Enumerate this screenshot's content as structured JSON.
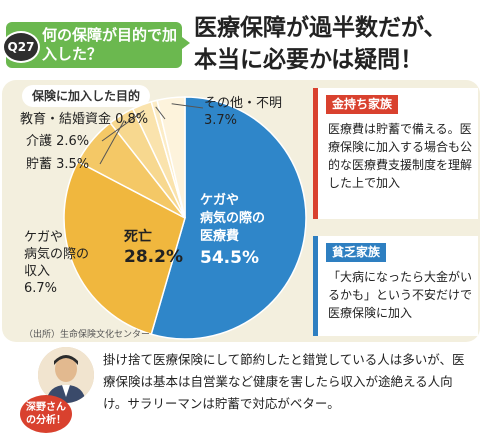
{
  "question": {
    "number": "Q27",
    "text": "何の保障が目的で加入した？"
  },
  "headline": {
    "line1": "医療保障が過半数だが、",
    "line2": "本当に必要かは疑問！"
  },
  "section_label": "保険に加入した目的",
  "source": "（出所）生命保険文化センター",
  "chart_data": {
    "type": "pie",
    "title": "保険に加入した目的",
    "slices": [
      {
        "name": "ケガや病気の際の医療費",
        "value": 54.5,
        "color": "#2f86c9"
      },
      {
        "name": "死亡",
        "value": 28.2,
        "color": "#f0b73e"
      },
      {
        "name": "ケガや病気の際の収入",
        "value": 6.7,
        "color": "#f4c866"
      },
      {
        "name": "貯蓄",
        "value": 3.5,
        "color": "#f7d88f"
      },
      {
        "name": "介護",
        "value": 2.6,
        "color": "#fae3ad"
      },
      {
        "name": "教育・結婚資金",
        "value": 0.8,
        "color": "#fcecc6"
      },
      {
        "name": "その他・不明",
        "value": 3.7,
        "color": "#fdf3dc"
      }
    ],
    "labels": {
      "medical_l1": "ケガや",
      "medical_l2": "病気の際の",
      "medical_l3": "医療費",
      "medical_val": "54.5%",
      "death_name": "死亡",
      "death_val": "28.2%",
      "income_l1": "ケガや",
      "income_l2": "病気の際の",
      "income_l3": "収入",
      "income_val": "6.7%",
      "savings": "貯蓄 3.5%",
      "care": "介護 2.6%",
      "education": "教育・結婚資金 0.8%",
      "other_name": "その他・不明",
      "other_val": "3.7%"
    }
  },
  "card_rich": {
    "tag": "金持ち家族",
    "text": "医療費は貯蓄で備える。医療保険に加入する場合も公的な医療費支援制度を理解した上で加入"
  },
  "card_poor": {
    "tag": "貧乏家族",
    "text": "「大病になったら大金がいるかも」という不安だけで医療保険に加入"
  },
  "analyst": {
    "badge_l1": "深野さん",
    "badge_l2": "の分析！"
  },
  "analysis": "掛け捨て医療保険にして節約したと錯覚している人は多いが、医療保険は基本は自営業など健康を害したら収入が途絶える人向け。サラリーマンは貯蓄で対応がベター。"
}
